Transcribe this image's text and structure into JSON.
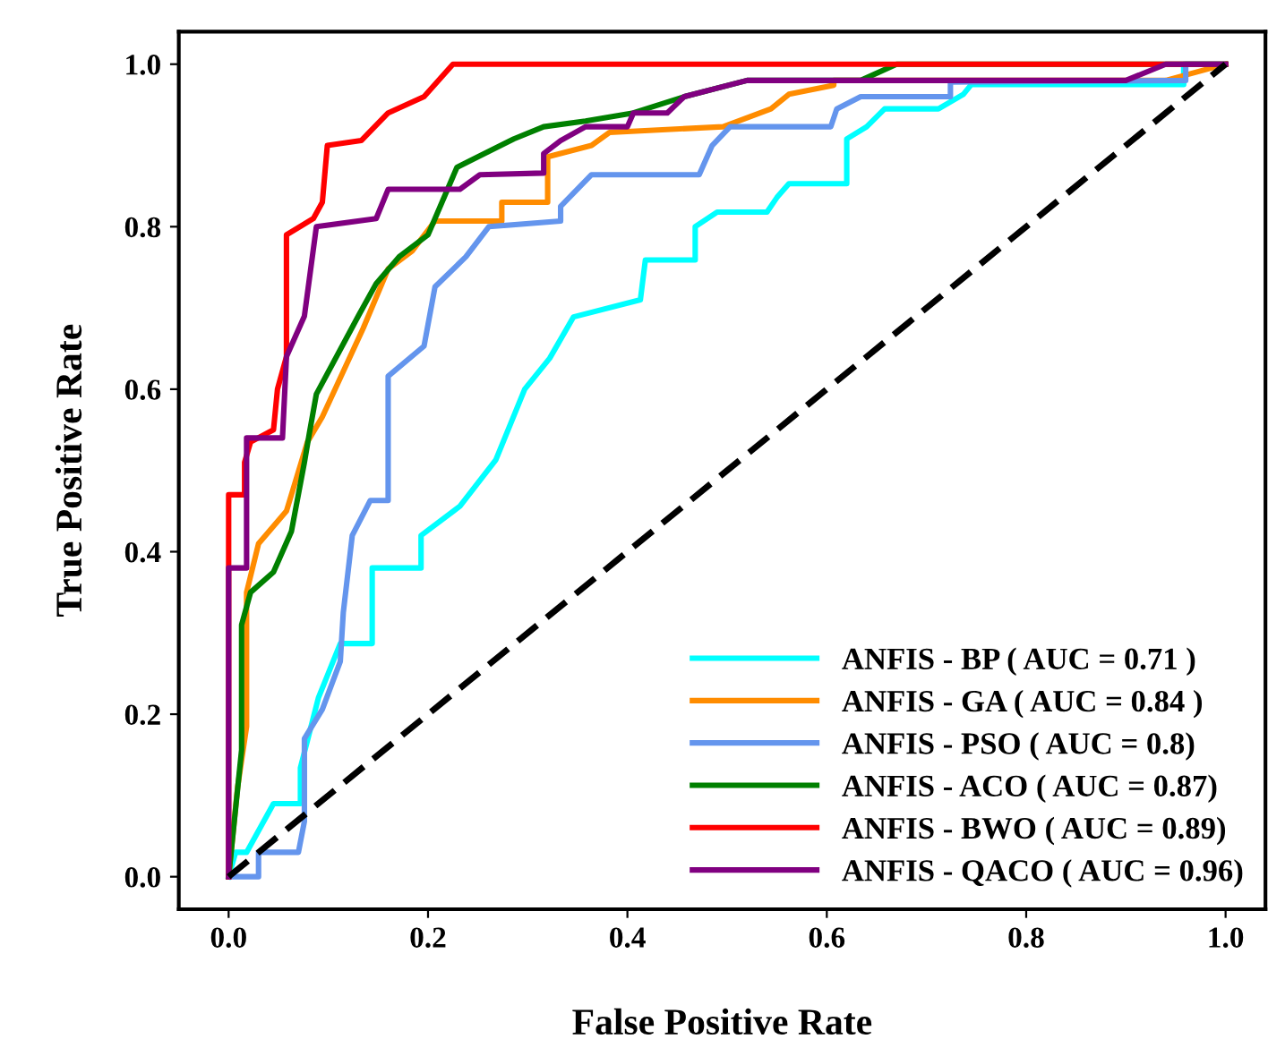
{
  "chart_data": {
    "type": "line",
    "xlabel": "False Positive Rate",
    "ylabel": "True Positive Rate",
    "xlim": [
      -0.05,
      1.04
    ],
    "ylim": [
      -0.04,
      1.04
    ],
    "xticks": [
      {
        "value": 0,
        "label": "0.0"
      },
      {
        "value": 0.2,
        "label": "0.2"
      },
      {
        "value": 0.4,
        "label": "0.4"
      },
      {
        "value": 0.6,
        "label": "0.6"
      },
      {
        "value": 0.8,
        "label": "0.8"
      },
      {
        "value": 1,
        "label": "1.0"
      }
    ],
    "yticks": [
      {
        "value": 0,
        "label": "0.0"
      },
      {
        "value": 0.2,
        "label": "0.2"
      },
      {
        "value": 0.4,
        "label": "0.4"
      },
      {
        "value": 0.6,
        "label": "0.6"
      },
      {
        "value": 0.8,
        "label": "0.8"
      },
      {
        "value": 1,
        "label": "1.0"
      }
    ],
    "grid": false,
    "legend": "bottom right",
    "line_style": "solid",
    "series": [
      {
        "name": "ANFIS - BP ( AUC = 0.71 )",
        "color": "#00ffff",
        "x": [
          0,
          0.007,
          0.018,
          0.045,
          0.072,
          0.072,
          0.09,
          0.112,
          0.144,
          0.144,
          0.193,
          0.193,
          0.232,
          0.268,
          0.297,
          0.322,
          0.346,
          0.413,
          0.418,
          0.468,
          0.468,
          0.49,
          0.54,
          0.55,
          0.562,
          0.62,
          0.62,
          0.64,
          0.658,
          0.712,
          0.737,
          0.745,
          0.958,
          0.958,
          1
        ],
        "values": [
          0,
          0.03,
          0.03,
          0.09,
          0.09,
          0.134,
          0.22,
          0.287,
          0.287,
          0.38,
          0.38,
          0.42,
          0.456,
          0.513,
          0.6,
          0.638,
          0.689,
          0.71,
          0.759,
          0.759,
          0.8,
          0.818,
          0.818,
          0.836,
          0.853,
          0.853,
          0.908,
          0.923,
          0.945,
          0.945,
          0.963,
          0.975,
          0.975,
          1.0,
          1.0
        ]
      },
      {
        "name": "ANFIS - GA ( AUC = 0.84 )",
        "color": "#ff8c00",
        "x": [
          0,
          0.009,
          0.018,
          0.018,
          0.03,
          0.058,
          0.058,
          0.079,
          0.094,
          0.135,
          0.16,
          0.184,
          0.207,
          0.274,
          0.274,
          0.32,
          0.32,
          0.364,
          0.382,
          0.496,
          0.544,
          0.562,
          0.607,
          0.607,
          0.94,
          1
        ],
        "values": [
          0,
          0.11,
          0.185,
          0.35,
          0.41,
          0.45,
          0.45,
          0.535,
          0.566,
          0.675,
          0.748,
          0.77,
          0.807,
          0.807,
          0.83,
          0.83,
          0.886,
          0.9,
          0.916,
          0.923,
          0.945,
          0.963,
          0.974,
          0.98,
          0.98,
          1.0
        ]
      },
      {
        "name": "ANFIS - PSO ( AUC = 0.8)",
        "color": "#6495ed",
        "x": [
          0,
          0.03,
          0.03,
          0.07,
          0.076,
          0.076,
          0.094,
          0.112,
          0.115,
          0.124,
          0.142,
          0.16,
          0.16,
          0.196,
          0.207,
          0.238,
          0.261,
          0.333,
          0.333,
          0.364,
          0.472,
          0.485,
          0.503,
          0.604,
          0.61,
          0.634,
          0.724,
          0.724,
          0.96,
          0.96,
          1
        ],
        "values": [
          0,
          0,
          0.03,
          0.03,
          0.068,
          0.17,
          0.206,
          0.265,
          0.325,
          0.42,
          0.463,
          0.463,
          0.616,
          0.653,
          0.726,
          0.763,
          0.8,
          0.807,
          0.825,
          0.864,
          0.864,
          0.9,
          0.923,
          0.923,
          0.945,
          0.96,
          0.96,
          0.978,
          0.98,
          1.0,
          1.0
        ]
      },
      {
        "name": "ANFIS - ACO ( AUC = 0.87)",
        "color": "#008000",
        "x": [
          0,
          0.013,
          0.013,
          0.022,
          0.045,
          0.063,
          0.076,
          0.081,
          0.088,
          0.13,
          0.148,
          0.171,
          0.2,
          0.229,
          0.25,
          0.286,
          0.316,
          0.358,
          0.406,
          0.457,
          0.52,
          0.634,
          0.67,
          1
        ],
        "values": [
          0,
          0.156,
          0.31,
          0.35,
          0.375,
          0.425,
          0.51,
          0.546,
          0.594,
          0.69,
          0.73,
          0.763,
          0.79,
          0.873,
          0.886,
          0.908,
          0.923,
          0.93,
          0.94,
          0.96,
          0.98,
          0.98,
          1.0,
          1.0
        ]
      },
      {
        "name": "ANFIS - BWO ( AUC = 0.89)",
        "color": "#ff0000",
        "x": [
          0,
          0,
          0.016,
          0.016,
          0.022,
          0.045,
          0.049,
          0.058,
          0.058,
          0.085,
          0.094,
          0.099,
          0.133,
          0.16,
          0.196,
          0.225,
          1
        ],
        "values": [
          0,
          0.47,
          0.47,
          0.51,
          0.535,
          0.55,
          0.6,
          0.64,
          0.79,
          0.81,
          0.83,
          0.9,
          0.906,
          0.94,
          0.96,
          1.0,
          1.0
        ]
      },
      {
        "name": "ANFIS - QACO ( AUC = 0.96)",
        "color": "#800080",
        "x": [
          0,
          0,
          0.018,
          0.018,
          0.054,
          0.058,
          0.076,
          0.088,
          0.148,
          0.16,
          0.232,
          0.252,
          0.316,
          0.316,
          0.333,
          0.358,
          0.4,
          0.406,
          0.44,
          0.457,
          0.52,
          0.9,
          0.94,
          1
        ],
        "values": [
          0,
          0.38,
          0.38,
          0.54,
          0.54,
          0.64,
          0.69,
          0.8,
          0.81,
          0.846,
          0.846,
          0.864,
          0.866,
          0.89,
          0.906,
          0.923,
          0.923,
          0.94,
          0.94,
          0.96,
          0.98,
          0.98,
          1.0,
          1.0
        ]
      },
      {
        "color": "#000000",
        "line_style": "dashed",
        "x": [
          0,
          1
        ],
        "values": [
          0,
          1
        ]
      }
    ]
  }
}
